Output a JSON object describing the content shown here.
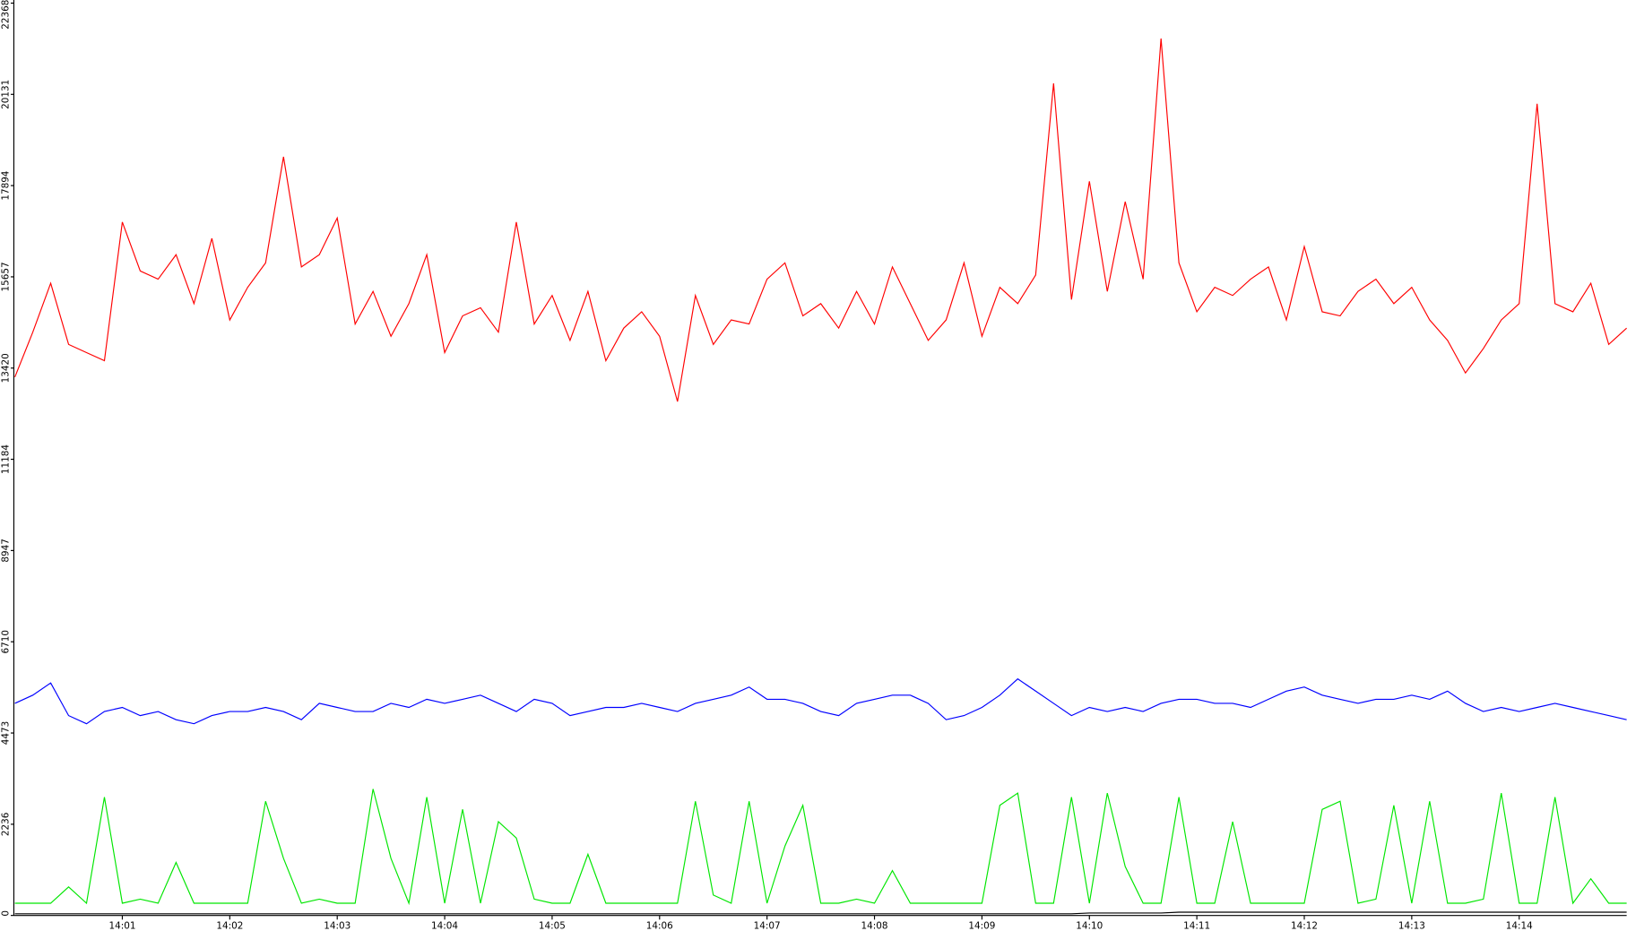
{
  "chart_data": {
    "type": "line",
    "categories": [
      null,
      null,
      null,
      null,
      null,
      null,
      "14:01",
      null,
      null,
      null,
      null,
      null,
      "14:02",
      null,
      null,
      null,
      null,
      null,
      "14:03",
      null,
      null,
      null,
      null,
      null,
      "14:04",
      null,
      null,
      null,
      null,
      null,
      "14:05",
      null,
      null,
      null,
      null,
      null,
      "14:06",
      null,
      null,
      null,
      null,
      null,
      "14:07",
      null,
      null,
      null,
      null,
      null,
      "14:08",
      null,
      null,
      null,
      null,
      null,
      "14:09",
      null,
      null,
      null,
      null,
      null,
      "14:10",
      null,
      null,
      null,
      null,
      null,
      "14:11",
      null,
      null,
      null,
      null,
      null,
      "14:12",
      null,
      null,
      null,
      null,
      null,
      "14:13",
      null,
      null,
      null,
      null,
      null,
      "14:14",
      null,
      null,
      null,
      null,
      null,
      null
    ],
    "series": [
      {
        "color": "#ff0000",
        "values": [
          13200,
          14300,
          15500,
          14000,
          13800,
          13600,
          17000,
          15800,
          15600,
          16200,
          15000,
          16600,
          14600,
          15400,
          16000,
          18600,
          15900,
          16200,
          17100,
          14500,
          15300,
          14200,
          15000,
          16200,
          13800,
          14700,
          14900,
          14300,
          17000,
          14500,
          15200,
          14100,
          15300,
          13600,
          14400,
          14800,
          14200,
          12600,
          15200,
          14000,
          14600,
          14500,
          15600,
          16000,
          14700,
          15000,
          14400,
          15300,
          14500,
          15900,
          15000,
          14100,
          14600,
          16000,
          14200,
          15400,
          15000,
          15700,
          20400,
          15100,
          18000,
          15300,
          17500,
          15600,
          21500,
          16000,
          14800,
          15400,
          15200,
          15600,
          15900,
          14600,
          16400,
          14800,
          14700,
          15300,
          15600,
          15000,
          15400,
          14600,
          14100,
          13300,
          13900,
          14600,
          15000,
          19900,
          15000,
          14800,
          15500,
          14000,
          14400
        ]
      },
      {
        "color": "#0000ff",
        "values": [
          5200,
          5400,
          5700,
          4900,
          4700,
          5000,
          5100,
          4900,
          5000,
          4800,
          4700,
          4900,
          5000,
          5000,
          5100,
          5000,
          4800,
          5200,
          5100,
          5000,
          5000,
          5200,
          5100,
          5300,
          5200,
          5300,
          5400,
          5200,
          5000,
          5300,
          5200,
          4900,
          5000,
          5100,
          5100,
          5200,
          5100,
          5000,
          5200,
          5300,
          5400,
          5600,
          5300,
          5300,
          5200,
          5000,
          4900,
          5200,
          5300,
          5400,
          5400,
          5200,
          4800,
          4900,
          5100,
          5400,
          5800,
          5500,
          5200,
          4900,
          5100,
          5000,
          5100,
          5000,
          5200,
          5300,
          5300,
          5200,
          5200,
          5100,
          5300,
          5500,
          5600,
          5400,
          5300,
          5200,
          5300,
          5300,
          5400,
          5300,
          5500,
          5200,
          5000,
          5100,
          5000,
          5100,
          5200,
          5100,
          5000,
          4900,
          4800
        ]
      },
      {
        "color": "#00e600",
        "values": [
          300,
          300,
          300,
          700,
          300,
          2900,
          300,
          400,
          300,
          1300,
          300,
          300,
          300,
          300,
          2800,
          1400,
          300,
          400,
          300,
          300,
          3100,
          1400,
          300,
          2900,
          300,
          2600,
          300,
          2300,
          1900,
          400,
          300,
          300,
          1500,
          300,
          300,
          300,
          300,
          300,
          2800,
          500,
          300,
          2800,
          300,
          1700,
          2700,
          300,
          300,
          400,
          300,
          1100,
          300,
          300,
          300,
          300,
          300,
          2700,
          3000,
          300,
          300,
          2900,
          300,
          3000,
          1200,
          300,
          300,
          2900,
          300,
          300,
          2300,
          300,
          300,
          300,
          300,
          2600,
          2800,
          300,
          400,
          2700,
          300,
          2800,
          300,
          300,
          400,
          3000,
          300,
          300,
          2900,
          300,
          900,
          300,
          300
        ]
      },
      {
        "color": "#000000",
        "values": [
          40,
          40,
          40,
          40,
          40,
          40,
          40,
          40,
          40,
          40,
          40,
          40,
          40,
          40,
          40,
          40,
          40,
          40,
          40,
          40,
          40,
          40,
          40,
          40,
          40,
          40,
          40,
          40,
          40,
          40,
          40,
          40,
          40,
          40,
          40,
          40,
          40,
          40,
          40,
          40,
          40,
          40,
          40,
          40,
          40,
          40,
          40,
          40,
          40,
          40,
          40,
          40,
          40,
          40,
          40,
          40,
          40,
          40,
          40,
          40,
          60,
          60,
          60,
          60,
          60,
          80,
          80,
          80,
          80,
          80,
          80,
          80,
          80,
          80,
          80,
          80,
          80,
          80,
          80,
          80,
          80,
          80,
          80,
          80,
          80,
          80,
          80,
          80,
          80,
          80,
          80
        ]
      }
    ],
    "ylim": [
      0,
      22368
    ],
    "yticks": [
      0,
      2236,
      4473,
      6710,
      8947,
      11184,
      13420,
      15657,
      17894,
      20131,
      22368
    ]
  }
}
